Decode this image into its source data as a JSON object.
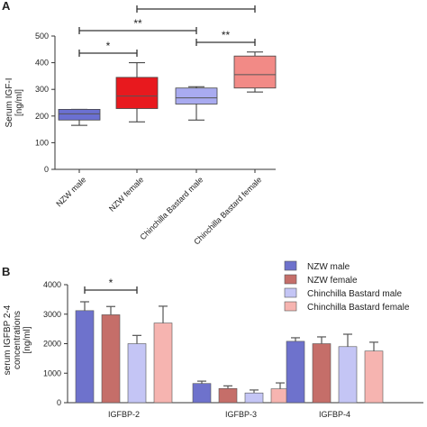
{
  "panels": [
    {
      "label": "A"
    },
    {
      "label": "B"
    }
  ],
  "chart_data": [
    {
      "type": "box",
      "ylabel": "Serum IGF-I\n[ng/ml]",
      "ylim": [
        0,
        500
      ],
      "yticks": [
        0,
        100,
        200,
        300,
        400,
        500
      ],
      "categories": [
        "NZW male",
        "NZW female",
        "Chinchilla Bastard male",
        "Chinchilla Bastard female"
      ],
      "colors": [
        "#6b70d2",
        "#e8191e",
        "#a9abf0",
        "#f28a86"
      ],
      "boxes": [
        {
          "min": 165,
          "q1": 185,
          "median": 208,
          "q3": 225,
          "max": 225
        },
        {
          "min": 178,
          "q1": 228,
          "median": 275,
          "q3": 345,
          "max": 400
        },
        {
          "min": 185,
          "q1": 245,
          "median": 268,
          "q3": 305,
          "max": 310
        },
        {
          "min": 290,
          "q1": 305,
          "median": 355,
          "q3": 425,
          "max": 440
        }
      ],
      "significance": [
        {
          "from": 0,
          "to": 1,
          "label": "*"
        },
        {
          "from": 0,
          "to": 2,
          "label": "**"
        },
        {
          "from": 2,
          "to": 3,
          "label": "**"
        },
        {
          "from": 1,
          "to": 3,
          "label": ""
        }
      ]
    },
    {
      "type": "bar",
      "ylabel": "serum IGFBP 2-4\nconcentrations\n[ng/ml]",
      "ylim": [
        0,
        4000
      ],
      "yticks": [
        0,
        1000,
        2000,
        3000,
        4000
      ],
      "categories": [
        "IGFBP-2",
        "IGFBP-3",
        "IGFBP-4"
      ],
      "legend_position": "top-right",
      "series": [
        {
          "name": "NZW male",
          "color": "#6e72cc",
          "values": [
            3120,
            650,
            2080
          ],
          "errors": [
            300,
            80,
            120
          ]
        },
        {
          "name": "NZW female",
          "color": "#c56e69",
          "values": [
            2980,
            480,
            2000
          ],
          "errors": [
            280,
            90,
            230
          ]
        },
        {
          "name": "Chinchilla Bastard male",
          "color": "#c4c5f5",
          "values": [
            2000,
            330,
            1900
          ],
          "errors": [
            280,
            100,
            420
          ]
        },
        {
          "name": "Chinchilla Bastard female",
          "color": "#f6b4b0",
          "values": [
            2700,
            470,
            1750
          ],
          "errors": [
            570,
            200,
            300
          ]
        }
      ],
      "significance": [
        {
          "group": 0,
          "from": 0,
          "to": 2,
          "label": "*"
        }
      ]
    }
  ]
}
